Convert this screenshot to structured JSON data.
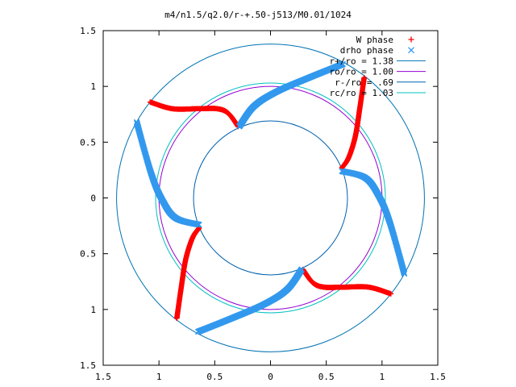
{
  "chart_data": {
    "type": "scatter",
    "title": "m4/n1.5/q2.0/r-+.50-j513/M0.01/1024",
    "xlim": [
      -1.5,
      1.5
    ],
    "ylim": [
      -1.5,
      1.5
    ],
    "xticks": [
      "1.5",
      "1",
      "0.5",
      "0",
      "0.5",
      "1",
      "1.5"
    ],
    "yticks": [
      "1.5",
      "1",
      "0.5",
      "0",
      "0.5",
      "1",
      "1.5"
    ],
    "xtick_values": [
      -1.5,
      -1,
      -0.5,
      0,
      0.5,
      1,
      1.5
    ],
    "ytick_values": [
      1.5,
      1,
      0.5,
      0,
      -0.5,
      -1,
      -1.5
    ],
    "grid": false,
    "legend_position": "top-right",
    "circles": [
      {
        "name": "r+/ro = 1.38",
        "r": 1.38,
        "color": "#0072b2"
      },
      {
        "name": "ro/ro = 1.00",
        "r": 1.0,
        "color": "#9400d3"
      },
      {
        "name": "r-/ro = .69",
        "r": 0.69,
        "color": "#0060ad"
      },
      {
        "name": "rc/ro = 1.03",
        "r": 1.03,
        "color": "#00c0c0"
      }
    ],
    "series": [
      {
        "name": "W phase",
        "marker": "+",
        "color": "#ff0000",
        "arms": [
          [
            [
              -1.08,
              0.86
            ],
            [
              -0.88,
              0.8
            ],
            [
              -0.65,
              0.8
            ],
            [
              -0.48,
              0.8
            ],
            [
              -0.38,
              0.76
            ],
            [
              -0.29,
              0.64
            ]
          ],
          [
            [
              0.84,
              1.08
            ],
            [
              0.8,
              0.8
            ],
            [
              0.76,
              0.55
            ],
            [
              0.7,
              0.36
            ],
            [
              0.64,
              0.27
            ]
          ],
          [
            [
              1.08,
              -0.86
            ],
            [
              0.88,
              -0.8
            ],
            [
              0.65,
              -0.8
            ],
            [
              0.48,
              -0.8
            ],
            [
              0.38,
              -0.76
            ],
            [
              0.29,
              -0.64
            ]
          ],
          [
            [
              -0.84,
              -1.08
            ],
            [
              -0.8,
              -0.8
            ],
            [
              -0.76,
              -0.55
            ],
            [
              -0.7,
              -0.36
            ],
            [
              -0.64,
              -0.27
            ]
          ]
        ]
      },
      {
        "name": "drho phase",
        "marker": "x",
        "color": "#3399ee",
        "arms": [
          [
            [
              -0.28,
              0.64
            ],
            [
              -0.15,
              0.82
            ],
            [
              0.05,
              0.95
            ],
            [
              0.35,
              1.08
            ],
            [
              0.65,
              1.2
            ]
          ],
          [
            [
              0.64,
              0.24
            ],
            [
              0.85,
              0.18
            ],
            [
              0.97,
              0.02
            ],
            [
              1.07,
              -0.22
            ],
            [
              1.2,
              -0.68
            ]
          ],
          [
            [
              0.28,
              -0.64
            ],
            [
              0.15,
              -0.82
            ],
            [
              -0.05,
              -0.95
            ],
            [
              -0.35,
              -1.08
            ],
            [
              -0.65,
              -1.2
            ]
          ],
          [
            [
              -0.64,
              -0.24
            ],
            [
              -0.85,
              -0.18
            ],
            [
              -0.97,
              -0.02
            ],
            [
              -1.07,
              0.22
            ],
            [
              -1.2,
              0.68
            ]
          ]
        ]
      }
    ]
  }
}
